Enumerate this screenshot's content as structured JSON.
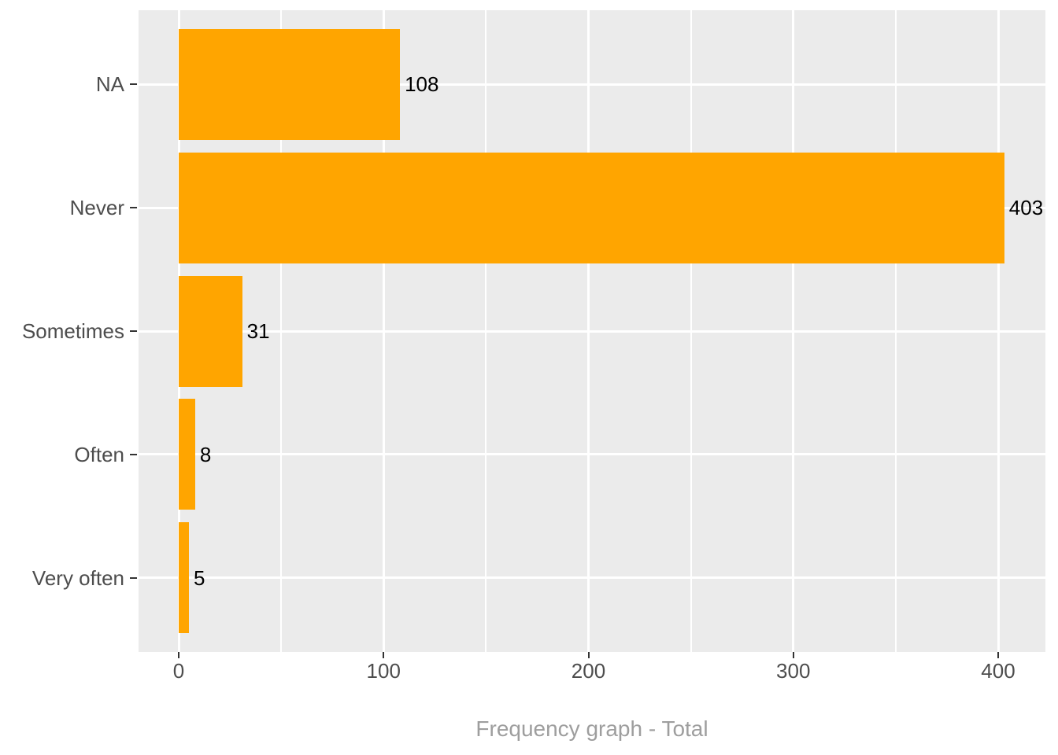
{
  "chart_data": {
    "type": "bar",
    "orientation": "horizontal",
    "title": "Frequency graph - Total",
    "categories": [
      "NA",
      "Never",
      "Sometimes",
      "Often",
      "Very often"
    ],
    "values": [
      108,
      403,
      31,
      8,
      5
    ],
    "value_labels": [
      "108",
      "403",
      "31",
      "8",
      "5"
    ],
    "x_tick_labels": [
      "0",
      "100",
      "200",
      "300",
      "400"
    ],
    "x_tick_values": [
      0,
      100,
      200,
      300,
      400
    ],
    "xlim": [
      0,
      423
    ],
    "grid": "white major and minor vertical lines, white major horizontal lines on gray panel",
    "legend": "none",
    "colors": {
      "bar_fill": "#FFA500",
      "panel_background": "#EBEBEB",
      "gridline": "#FFFFFF",
      "axis_text": "#4D4D4D",
      "tick_mark": "#333333",
      "value_label_text": "#000000",
      "title_text": "#9E9E9E",
      "page_background": "#FFFFFF"
    }
  }
}
